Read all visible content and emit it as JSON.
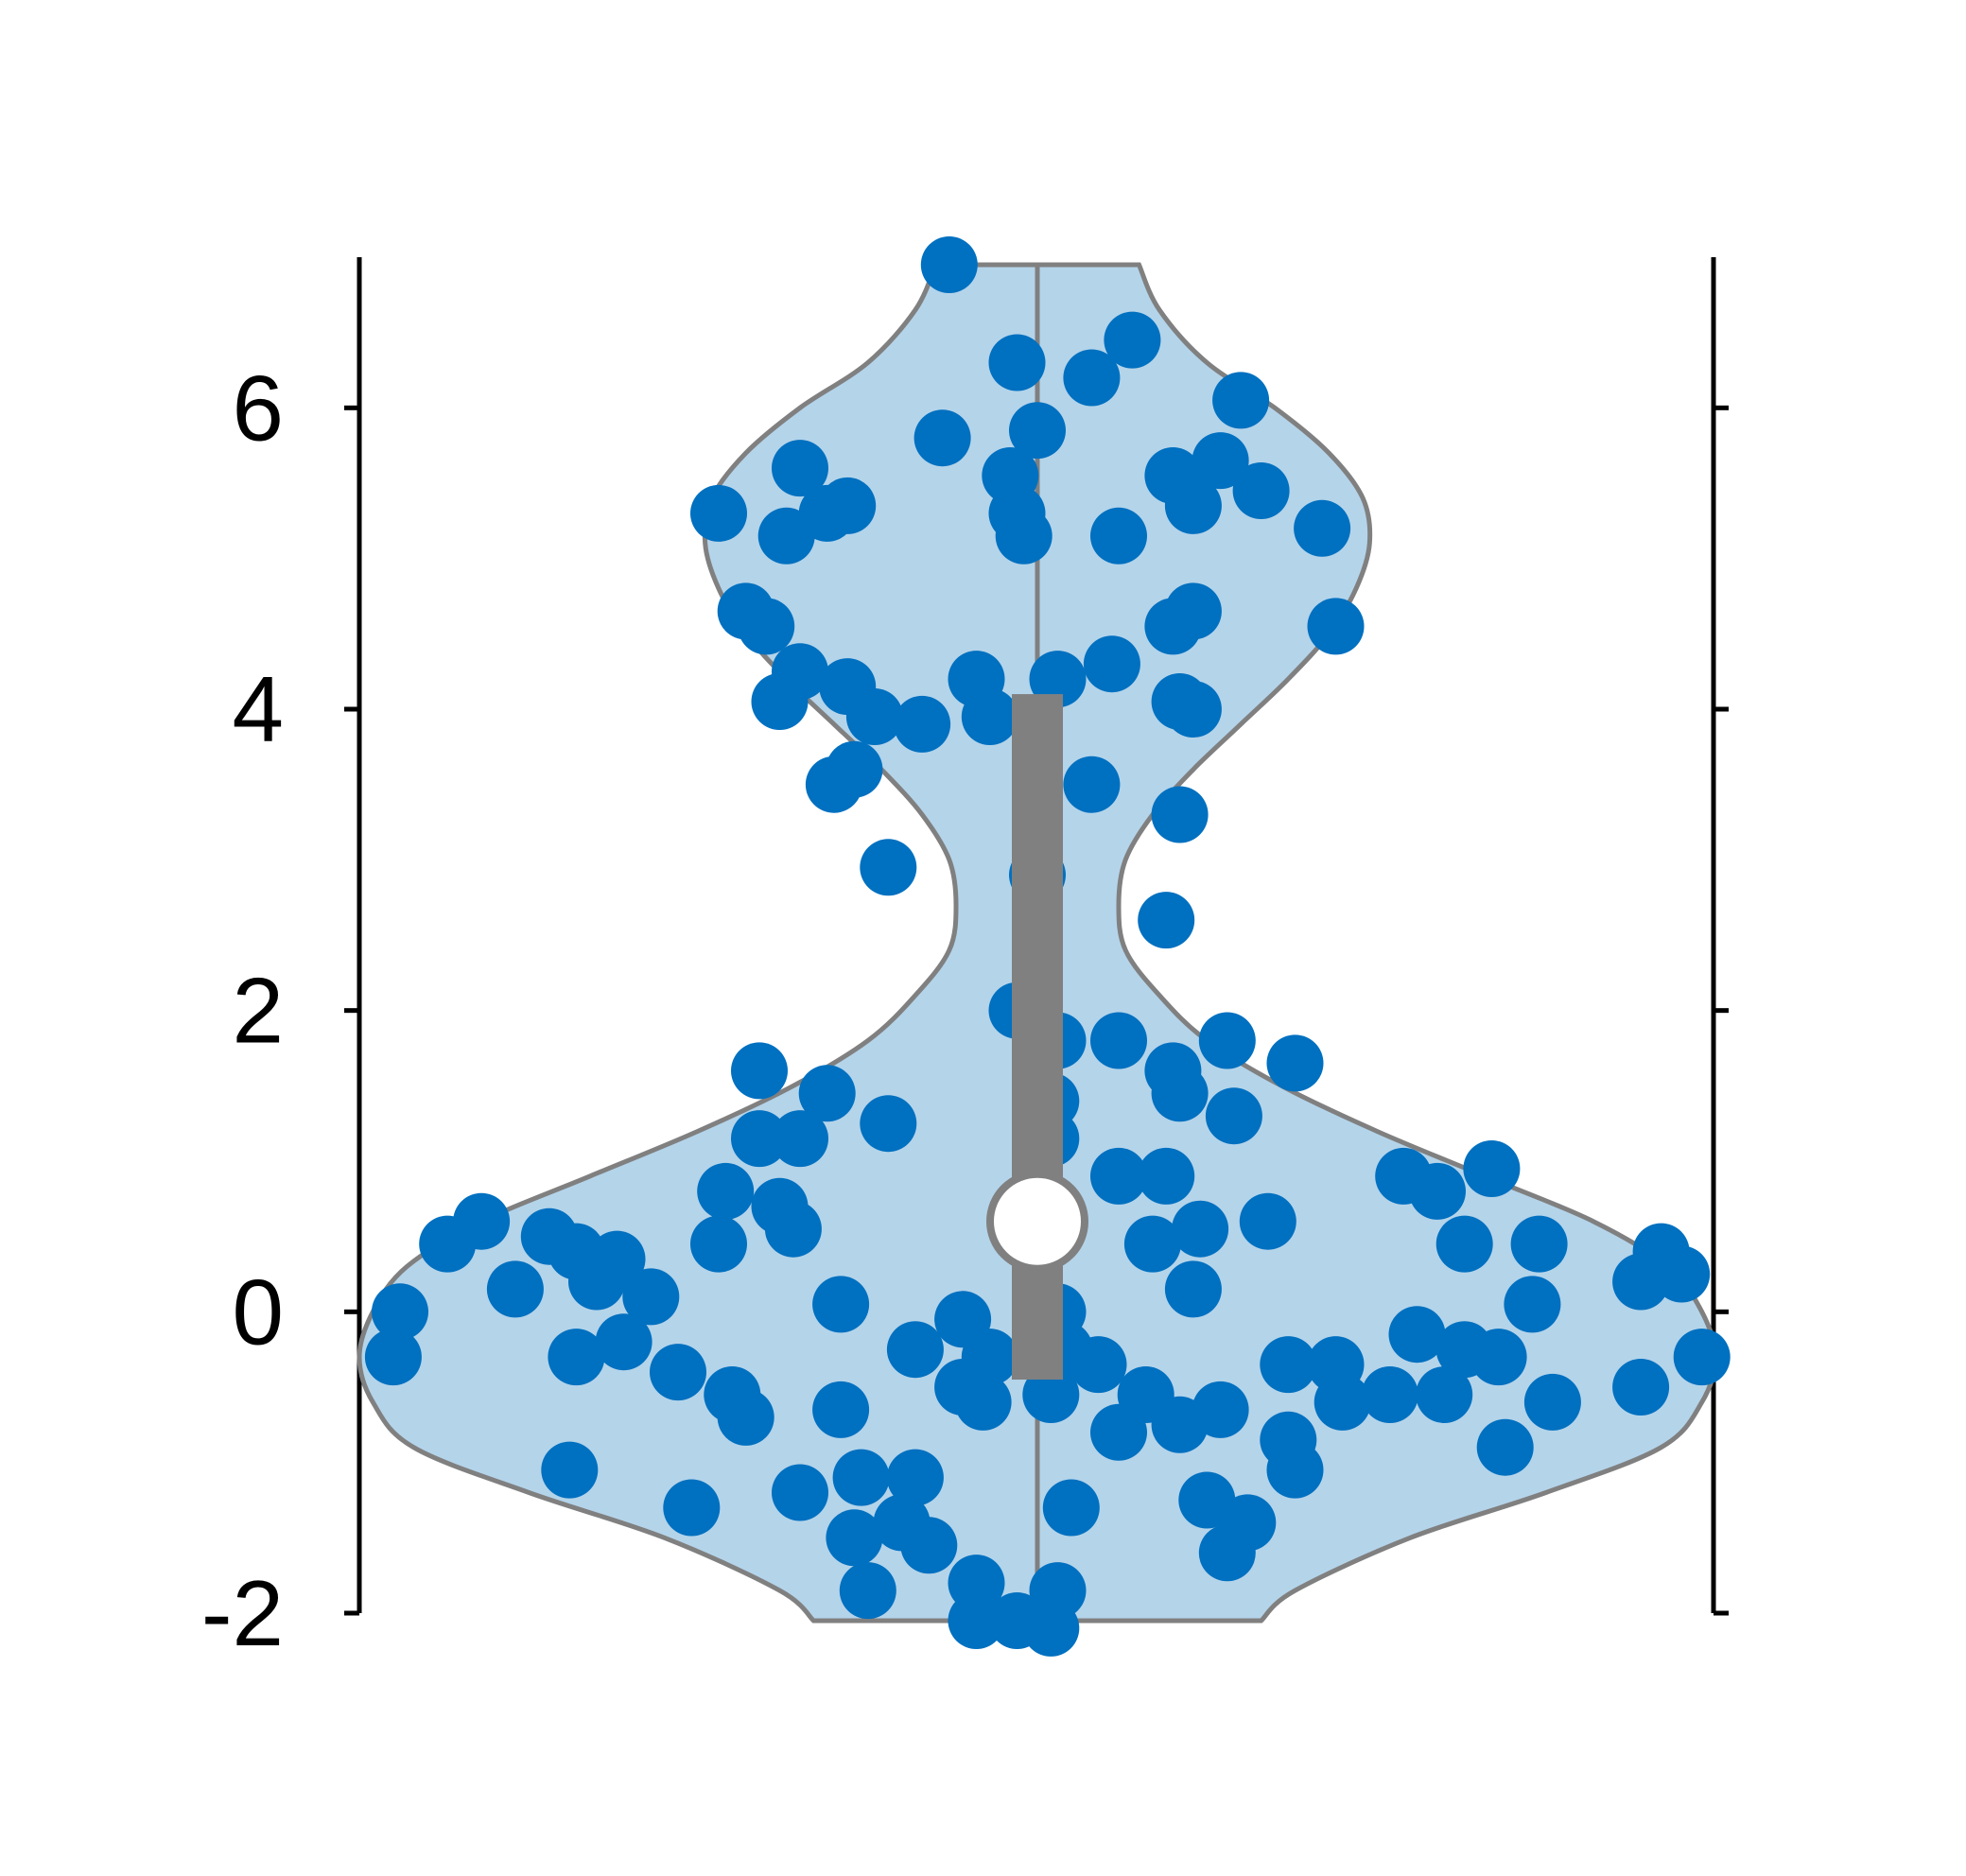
{
  "chart_data": {
    "type": "violin",
    "title": "",
    "xlabel": "",
    "ylabel": "",
    "ylim": [
      -2,
      7
    ],
    "yticks": [
      -2,
      0,
      2,
      4,
      6
    ],
    "ytick_labels": [
      "-2",
      "0",
      "2",
      "4",
      "6"
    ],
    "grid": false,
    "colors": {
      "points": "#0070c0",
      "violin_fill": "#b4d4ea",
      "violin_edge": "#808080",
      "box": "#808080",
      "median_marker": "#ffffff",
      "axis": "#000000"
    },
    "summary": {
      "median": 0.6,
      "q1": -0.45,
      "q3": 4.1,
      "min": -2.05,
      "max": 6.95
    },
    "density_profile": [
      {
        "y": -2.05,
        "w": 0.33
      },
      {
        "y": -1.85,
        "w": 0.38
      },
      {
        "y": -1.5,
        "w": 0.55
      },
      {
        "y": -1.2,
        "w": 0.75
      },
      {
        "y": -0.9,
        "w": 0.92
      },
      {
        "y": -0.6,
        "w": 0.98
      },
      {
        "y": -0.3,
        "w": 1.0
      },
      {
        "y": 0.0,
        "w": 0.98
      },
      {
        "y": 0.3,
        "w": 0.93
      },
      {
        "y": 0.6,
        "w": 0.82
      },
      {
        "y": 0.9,
        "w": 0.66
      },
      {
        "y": 1.2,
        "w": 0.5
      },
      {
        "y": 1.5,
        "w": 0.36
      },
      {
        "y": 1.8,
        "w": 0.25
      },
      {
        "y": 2.1,
        "w": 0.18
      },
      {
        "y": 2.4,
        "w": 0.13
      },
      {
        "y": 2.7,
        "w": 0.12
      },
      {
        "y": 3.0,
        "w": 0.13
      },
      {
        "y": 3.3,
        "w": 0.17
      },
      {
        "y": 3.6,
        "w": 0.23
      },
      {
        "y": 3.9,
        "w": 0.3
      },
      {
        "y": 4.2,
        "w": 0.37
      },
      {
        "y": 4.5,
        "w": 0.43
      },
      {
        "y": 4.8,
        "w": 0.47
      },
      {
        "y": 5.1,
        "w": 0.49
      },
      {
        "y": 5.4,
        "w": 0.48
      },
      {
        "y": 5.7,
        "w": 0.43
      },
      {
        "y": 6.0,
        "w": 0.35
      },
      {
        "y": 6.3,
        "w": 0.25
      },
      {
        "y": 6.65,
        "w": 0.18
      },
      {
        "y": 6.95,
        "w": 0.15
      }
    ],
    "points": [
      {
        "x": -0.13,
        "y": 6.95
      },
      {
        "x": -0.03,
        "y": 6.3
      },
      {
        "x": 0.08,
        "y": 6.2
      },
      {
        "x": 0.14,
        "y": 6.45
      },
      {
        "x": 0.3,
        "y": 6.05
      },
      {
        "x": -0.14,
        "y": 5.8
      },
      {
        "x": -0.04,
        "y": 5.55
      },
      {
        "x": -0.03,
        "y": 5.3
      },
      {
        "x": -0.02,
        "y": 5.15
      },
      {
        "x": 0.0,
        "y": 5.85
      },
      {
        "x": 0.12,
        "y": 5.15
      },
      {
        "x": 0.2,
        "y": 5.55
      },
      {
        "x": 0.23,
        "y": 5.35
      },
      {
        "x": 0.27,
        "y": 5.65
      },
      {
        "x": 0.33,
        "y": 5.45
      },
      {
        "x": 0.42,
        "y": 5.2
      },
      {
        "x": -0.35,
        "y": 5.6
      },
      {
        "x": -0.31,
        "y": 5.3
      },
      {
        "x": -0.37,
        "y": 5.15
      },
      {
        "x": -0.47,
        "y": 5.3
      },
      {
        "x": -0.28,
        "y": 5.35
      },
      {
        "x": -0.43,
        "y": 4.65
      },
      {
        "x": -0.4,
        "y": 4.55
      },
      {
        "x": -0.38,
        "y": 4.05
      },
      {
        "x": -0.35,
        "y": 4.25
      },
      {
        "x": -0.28,
        "y": 4.15
      },
      {
        "x": -0.24,
        "y": 3.95
      },
      {
        "x": -0.17,
        "y": 3.9
      },
      {
        "x": -0.27,
        "y": 3.6
      },
      {
        "x": -0.3,
        "y": 3.5
      },
      {
        "x": -0.09,
        "y": 4.2
      },
      {
        "x": -0.07,
        "y": 3.95
      },
      {
        "x": 0.03,
        "y": 4.2
      },
      {
        "x": 0.11,
        "y": 4.3
      },
      {
        "x": 0.08,
        "y": 3.5
      },
      {
        "x": 0.2,
        "y": 4.55
      },
      {
        "x": 0.23,
        "y": 4.65
      },
      {
        "x": 0.21,
        "y": 4.05
      },
      {
        "x": 0.23,
        "y": 4.0
      },
      {
        "x": 0.21,
        "y": 3.3
      },
      {
        "x": 0.44,
        "y": 4.55
      },
      {
        "x": -0.22,
        "y": 2.95
      },
      {
        "x": 0.0,
        "y": 2.9
      },
      {
        "x": 0.19,
        "y": 2.6
      },
      {
        "x": -0.03,
        "y": 2.0
      },
      {
        "x": 0.03,
        "y": 1.8
      },
      {
        "x": 0.12,
        "y": 1.8
      },
      {
        "x": 0.2,
        "y": 1.6
      },
      {
        "x": 0.28,
        "y": 1.8
      },
      {
        "x": 0.21,
        "y": 1.45
      },
      {
        "x": 0.29,
        "y": 1.3
      },
      {
        "x": 0.38,
        "y": 1.65
      },
      {
        "x": 0.02,
        "y": 1.4
      },
      {
        "x": 0.02,
        "y": 1.15
      },
      {
        "x": -0.41,
        "y": 1.6
      },
      {
        "x": -0.31,
        "y": 1.45
      },
      {
        "x": -0.22,
        "y": 1.25
      },
      {
        "x": -0.41,
        "y": 1.15
      },
      {
        "x": -0.35,
        "y": 1.15
      },
      {
        "x": -0.46,
        "y": 0.8
      },
      {
        "x": -0.38,
        "y": 0.7
      },
      {
        "x": -0.36,
        "y": 0.55
      },
      {
        "x": -0.47,
        "y": 0.45
      },
      {
        "x": 0.12,
        "y": 0.9
      },
      {
        "x": 0.19,
        "y": 0.9
      },
      {
        "x": 0.24,
        "y": 0.55
      },
      {
        "x": 0.17,
        "y": 0.45
      },
      {
        "x": 0.23,
        "y": 0.15
      },
      {
        "x": 0.34,
        "y": 0.6
      },
      {
        "x": 0.54,
        "y": 0.9
      },
      {
        "x": 0.59,
        "y": 0.8
      },
      {
        "x": 0.67,
        "y": 0.95
      },
      {
        "x": 0.63,
        "y": 0.45
      },
      {
        "x": 0.74,
        "y": 0.45
      },
      {
        "x": 0.73,
        "y": 0.05
      },
      {
        "x": 0.89,
        "y": 0.2
      },
      {
        "x": 0.92,
        "y": 0.4
      },
      {
        "x": 0.95,
        "y": 0.25
      },
      {
        "x": -0.87,
        "y": 0.45
      },
      {
        "x": -0.82,
        "y": 0.6
      },
      {
        "x": -0.72,
        "y": 0.5
      },
      {
        "x": -0.68,
        "y": 0.4
      },
      {
        "x": -0.65,
        "y": 0.2
      },
      {
        "x": -0.62,
        "y": 0.35
      },
      {
        "x": -0.77,
        "y": 0.15
      },
      {
        "x": -0.57,
        "y": 0.1
      },
      {
        "x": -0.94,
        "y": 0.0
      },
      {
        "x": -0.95,
        "y": -0.3
      },
      {
        "x": -0.29,
        "y": 0.05
      },
      {
        "x": -0.68,
        "y": -0.3
      },
      {
        "x": -0.61,
        "y": -0.2
      },
      {
        "x": -0.53,
        "y": -0.4
      },
      {
        "x": -0.45,
        "y": -0.55
      },
      {
        "x": -0.43,
        "y": -0.7
      },
      {
        "x": -0.69,
        "y": -1.05
      },
      {
        "x": -0.51,
        "y": -1.3
      },
      {
        "x": -0.18,
        "y": -0.25
      },
      {
        "x": -0.11,
        "y": -0.5
      },
      {
        "x": -0.08,
        "y": -0.6
      },
      {
        "x": -0.11,
        "y": -0.05
      },
      {
        "x": -0.07,
        "y": -0.3
      },
      {
        "x": 0.03,
        "y": 0.0
      },
      {
        "x": 0.04,
        "y": -0.25
      },
      {
        "x": 0.09,
        "y": -0.35
      },
      {
        "x": 0.02,
        "y": -0.55
      },
      {
        "x": -0.29,
        "y": -0.65
      },
      {
        "x": -0.26,
        "y": -1.1
      },
      {
        "x": -0.35,
        "y": -1.2
      },
      {
        "x": -0.27,
        "y": -1.5
      },
      {
        "x": -0.18,
        "y": -1.1
      },
      {
        "x": -0.2,
        "y": -1.4
      },
      {
        "x": -0.16,
        "y": -1.55
      },
      {
        "x": -0.25,
        "y": -1.85
      },
      {
        "x": -0.09,
        "y": -1.8
      },
      {
        "x": -0.09,
        "y": -2.05
      },
      {
        "x": -0.03,
        "y": -2.05
      },
      {
        "x": 0.02,
        "y": -2.1
      },
      {
        "x": 0.03,
        "y": -1.85
      },
      {
        "x": 0.05,
        "y": -1.3
      },
      {
        "x": 0.16,
        "y": -0.55
      },
      {
        "x": 0.21,
        "y": -0.75
      },
      {
        "x": 0.27,
        "y": -0.65
      },
      {
        "x": 0.12,
        "y": -0.8
      },
      {
        "x": 0.25,
        "y": -1.25
      },
      {
        "x": 0.31,
        "y": -1.4
      },
      {
        "x": 0.28,
        "y": -1.6
      },
      {
        "x": 0.37,
        "y": -0.35
      },
      {
        "x": 0.44,
        "y": -0.35
      },
      {
        "x": 0.45,
        "y": -0.6
      },
      {
        "x": 0.37,
        "y": -0.85
      },
      {
        "x": 0.38,
        "y": -1.05
      },
      {
        "x": 0.56,
        "y": -0.15
      },
      {
        "x": 0.6,
        "y": -0.55
      },
      {
        "x": 0.63,
        "y": -0.25
      },
      {
        "x": 0.68,
        "y": -0.3
      },
      {
        "x": 0.52,
        "y": -0.55
      },
      {
        "x": 0.76,
        "y": -0.6
      },
      {
        "x": 0.69,
        "y": -0.9
      },
      {
        "x": 0.89,
        "y": -0.5
      },
      {
        "x": 0.98,
        "y": -0.3
      }
    ]
  }
}
